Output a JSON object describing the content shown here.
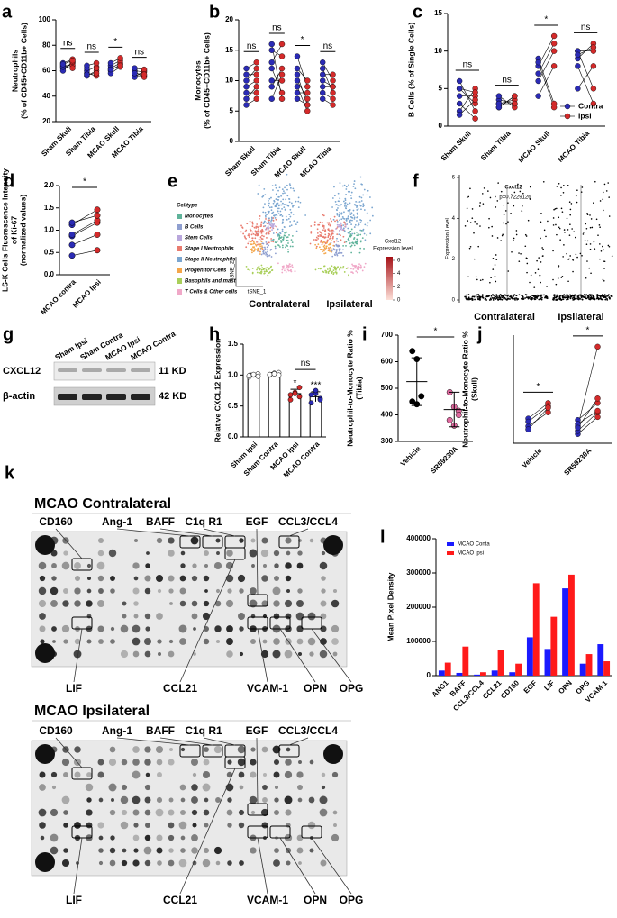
{
  "chart_data": [
    {
      "type": "scatter",
      "label": "a",
      "ylabel": [
        "Neutrophils",
        "(% of CD45+CD11b+ Cells)"
      ],
      "categories": [
        "Sham Skull",
        "Sham Tibia",
        "MCAO Skull",
        "MCAO Tibia"
      ],
      "ylim": [
        20,
        100
      ],
      "yticks": [
        20,
        40,
        60,
        80,
        100
      ],
      "annotations": [
        "ns",
        "ns",
        "*",
        "ns"
      ],
      "series": [
        {
          "color": "#2b2bb5",
          "values": [
            [
              62,
              64,
              60,
              63,
              66,
              65
            ],
            [
              58,
              56,
              60,
              62,
              57,
              64
            ],
            [
              60,
              62,
              64,
              58,
              66,
              61
            ],
            [
              56,
              60,
              55,
              59,
              62,
              58
            ]
          ]
        },
        {
          "color": "#d42a2a",
          "values": [
            [
              66,
              64,
              67,
              62,
              69,
              68
            ],
            [
              56,
              60,
              63,
              62,
              58,
              66
            ],
            [
              65,
              66,
              68,
              63,
              70,
              64
            ],
            [
              56,
              59,
              60,
              55,
              61,
              57
            ]
          ]
        }
      ]
    },
    {
      "type": "scatter",
      "label": "b",
      "ylabel": [
        "Monocytes",
        "(% of CD45+CD11b+ Cells)"
      ],
      "categories": [
        "Sham Skull",
        "Sham Tibia",
        "MCAO Skull",
        "MCAO Tibia"
      ],
      "ylim": [
        0,
        20
      ],
      "yticks": [
        0,
        5,
        10,
        15,
        20
      ],
      "annotations": [
        "ns",
        "ns",
        "*",
        "ns"
      ],
      "series": [
        {
          "color": "#2b2bb5",
          "values": [
            [
              9,
              7,
              10,
              11,
              8,
              6,
              12
            ],
            [
              15,
              12,
              9,
              7,
              13,
              16,
              10
            ],
            [
              14,
              10,
              9,
              8,
              11,
              12,
              7
            ],
            [
              13,
              9,
              8,
              11,
              7,
              12,
              10
            ]
          ]
        },
        {
          "color": "#d42a2a",
          "values": [
            [
              10,
              9,
              12,
              11,
              8,
              7,
              13
            ],
            [
              14,
              8,
              12,
              11,
              16,
              7,
              10
            ],
            [
              9,
              7,
              5,
              8,
              6,
              10,
              6
            ],
            [
              10,
              9,
              7,
              11,
              6,
              8,
              9
            ]
          ]
        }
      ]
    },
    {
      "type": "scatter",
      "label": "c",
      "ylabel": "B Cells (% of Single Cells)",
      "categories": [
        "Sham Skull",
        "Sham Tibia",
        "MCAO Skull",
        "MCAO Tibia"
      ],
      "ylim": [
        0,
        15
      ],
      "yticks": [
        0,
        5,
        10,
        15
      ],
      "annotations": [
        "ns",
        "ns",
        "*",
        "ns"
      ],
      "legend": "lower right",
      "series": [
        {
          "name": "Contra",
          "color": "#2b2bb5",
          "values": [
            [
              5,
              4,
              2,
              6,
              3,
              5,
              1.5
            ],
            [
              3.5,
              2.5,
              4,
              3,
              3,
              2.5
            ],
            [
              8,
              6,
              9,
              4,
              7,
              8.5
            ],
            [
              9,
              10,
              8,
              5,
              10,
              9.5
            ]
          ]
        },
        {
          "name": "Ipsi",
          "color": "#d42a2a",
          "values": [
            [
              3,
              4,
              5,
              2,
              1,
              4.5,
              3.5
            ],
            [
              3,
              4,
              2.5,
              3.5,
              3,
              4
            ],
            [
              12,
              10,
              3,
              8,
              11,
              2.5
            ],
            [
              11,
              10,
              3,
              8,
              5,
              10.5
            ]
          ]
        }
      ]
    },
    {
      "type": "scatter",
      "label": "d",
      "ylabel": [
        "LS-K Cells Fluorescence Intensity",
        "of Ki-67",
        "(normalized values)"
      ],
      "categories": [
        "MCAO contra",
        "MCAO Ipsi"
      ],
      "paired": true,
      "colors": [
        "#2b2bb5",
        "#d42a2a"
      ],
      "ylim": [
        0,
        2
      ],
      "yticks": [
        {
          "value": 0,
          "label": "0.0"
        },
        0.5,
        {
          "value": 1,
          "label": "1.0"
        },
        1.5,
        {
          "value": 2,
          "label": "2.0"
        }
      ],
      "bracket_label": "*",
      "values": [
        [
          0.43,
          0.67,
          0.87,
          0.9,
          1.12,
          1.17
        ],
        [
          0.55,
          0.9,
          1.17,
          1.22,
          1.46,
          1.33
        ]
      ]
    },
    {
      "type": "bar",
      "label": "h",
      "ylabel": "Relative CXCL12 Expression",
      "categories": [
        "Sham Ipsi",
        "Sham Contra",
        "MCAO Ipsi",
        "MCAO Contra"
      ],
      "ylim": [
        0,
        1.5
      ],
      "yticks": [
        {
          "value": 0,
          "label": "0.0"
        },
        0.5,
        {
          "value": 1,
          "label": "1.0"
        },
        1.5
      ],
      "values": [
        1.0,
        1.02,
        0.7,
        0.65
      ],
      "errors": [
        0.03,
        0.02,
        0.07,
        0.08
      ],
      "points": [
        [
          0.97,
          1.0,
          1.02,
          0.99,
          1.01,
          0.98
        ],
        [
          1.0,
          1.03,
          1.04,
          1.01,
          1.02,
          1.0
        ],
        [
          0.6,
          0.72,
          0.8,
          0.68,
          0.7,
          0.65
        ],
        [
          0.55,
          0.7,
          0.62,
          0.68,
          0.75,
          0.6
        ]
      ],
      "point_colors": [
        "#ffffff",
        "#ffffff",
        "#d42a2a",
        "#2b2bb5"
      ],
      "annotations": [
        null,
        null,
        "*",
        "***"
      ],
      "bracket_label": "ns"
    },
    {
      "type": "scatter",
      "label": "i",
      "ylabel": [
        "Neutrophil-to-Monocyte Ratio %",
        "(Tibia)"
      ],
      "categories": [
        "Vehicle",
        "SR59230A"
      ],
      "colors": [
        "#000000",
        "#e06aa0"
      ],
      "ylim": [
        300,
        700
      ],
      "yticks": [
        300,
        400,
        500,
        600,
        700
      ],
      "bracket_label": "*",
      "values": [
        [
          640,
          610,
          470,
          450,
          440
        ],
        [
          485,
          430,
          415,
          380,
          360,
          400
        ]
      ],
      "means": [
        525,
        420
      ],
      "errors": [
        90,
        65
      ]
    },
    {
      "type": "scatter",
      "label": "j",
      "ylabel": [
        "Neutrophil-to-Monocyte Ratio %",
        "(Skull)"
      ],
      "categories": [
        "Vehicle",
        "SR59230A"
      ],
      "ylim": [
        300,
        1700
      ],
      "annotations": [
        "*",
        "*"
      ],
      "series": [
        {
          "color": "#2b2bb5",
          "values": [
            [
              520,
              620,
              580,
              480
            ],
            [
              420,
              520,
              460,
              600,
              550,
              500
            ]
          ]
        },
        {
          "color": "#d42a2a",
          "values": [
            [
              700,
              820,
              780,
              760
            ],
            [
              640,
              1550,
              700,
              820,
              720,
              880
            ]
          ]
        }
      ]
    },
    {
      "type": "bar",
      "label": "l",
      "ylabel": "Mean Pixel Density",
      "legend": "upper left",
      "categories": [
        "ANG1",
        "BAFF",
        "CCL3/CCL4",
        "CCL21",
        "CD160",
        "EGF",
        "LIF",
        "OPN",
        "OPG",
        "VCAM-1"
      ],
      "ylim": [
        0,
        400000
      ],
      "yticks": [
        0,
        100000,
        200000,
        300000,
        400000
      ],
      "series": [
        {
          "name": "MCAO Conta",
          "color": "#1a1aff",
          "values": [
            15000,
            8000,
            3000,
            15000,
            10000,
            112000,
            78000,
            255000,
            35000,
            92000
          ]
        },
        {
          "name": "MCAO Ipsi",
          "color": "#ff1a1a",
          "values": [
            38000,
            85000,
            10000,
            75000,
            35000,
            270000,
            172000,
            295000,
            63000,
            42000
          ]
        }
      ]
    }
  ],
  "panels": {
    "e": {
      "label": "e",
      "legend_title": "Celltype",
      "legend": [
        "Monocytes",
        "B Cells",
        "Stem Cells",
        "Stage I Neutrophils",
        "Stage II Neutrophils",
        "Progenitor Cells",
        "Basophils and mast",
        "T Cells & Other cells"
      ],
      "colors": [
        "#5fb39a",
        "#8f9fd0",
        "#b9a7dc",
        "#e97b6f",
        "#7ba6d0",
        "#f4a64a",
        "#a9cf5a",
        "#f0a8c8"
      ],
      "x_axis": "tSNE_1",
      "y_axis": "tSNE_2",
      "groups": [
        "Contralateral",
        "Ipsilateral"
      ],
      "colorbar_title": [
        "Cxcl12",
        "Expression level"
      ],
      "colorbar_ticks": [
        0,
        2,
        4,
        6
      ]
    },
    "f": {
      "label": "f",
      "title": "Cxcl12",
      "p": "p=0.7229126",
      "ylabel": "Expression Level",
      "yticks": [
        0,
        2,
        4,
        6
      ],
      "categories": [
        "Contralateral",
        "Ipsilateral"
      ]
    },
    "g": {
      "label": "g",
      "lanes": [
        "Sham Ipsi",
        "Sham Contra",
        "MCAO Ipsi",
        "MCAO Contra"
      ],
      "rows": [
        {
          "name": "CXCL12",
          "size": "11 KD"
        },
        {
          "name": "β-actin",
          "size": "42 KD"
        }
      ]
    },
    "k": {
      "label": "k",
      "arrays": [
        {
          "title": "MCAO Contralateral",
          "top": [
            "CD160",
            "Ang-1",
            "BAFF",
            "C1q R1",
            "EGF",
            "CCL3/CCL4"
          ],
          "bottom": [
            "LIF",
            "CCL21",
            "VCAM-1",
            "OPN",
            "OPG"
          ]
        },
        {
          "title": "MCAO Ipsilateral",
          "top": [
            "CD160",
            "Ang-1",
            "BAFF",
            "C1q R1",
            "EGF",
            "CCL3/CCL4"
          ],
          "bottom": [
            "LIF",
            "CCL21",
            "VCAM-1",
            "OPN",
            "OPG"
          ]
        }
      ]
    }
  }
}
